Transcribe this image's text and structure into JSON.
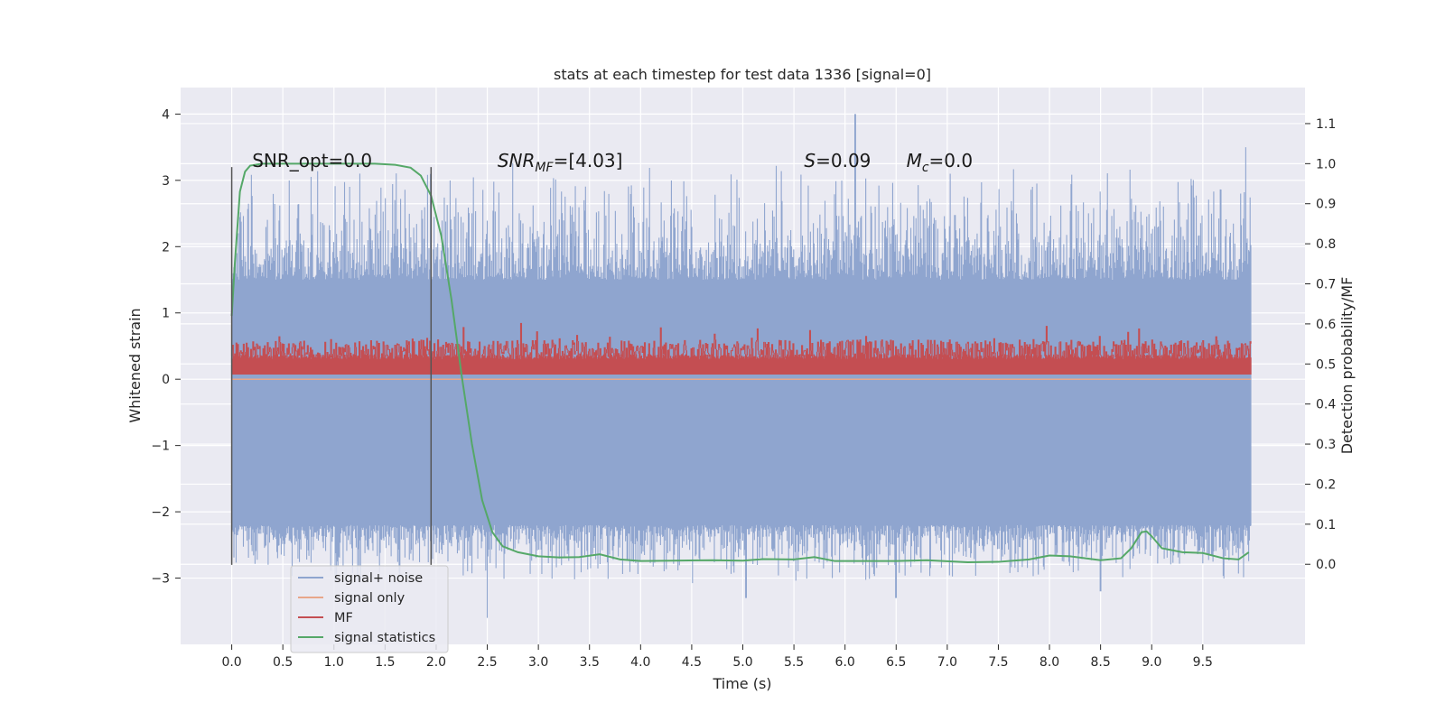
{
  "chart_data": {
    "type": "line",
    "title": "stats at each timestep for test data 1336 [signal=0]",
    "xlabel": "Time (s)",
    "ylabel_left": "Whitened strain",
    "ylabel_right": "Detection probability/MF",
    "xlim": [
      -0.5,
      10.5
    ],
    "ylim_left": [
      -4.0,
      4.4
    ],
    "ylim_right": [
      -0.2,
      1.19
    ],
    "x_ticks": [
      "0.0",
      "0.5",
      "1.0",
      "1.5",
      "2.0",
      "2.5",
      "3.0",
      "3.5",
      "4.0",
      "4.5",
      "5.0",
      "5.5",
      "6.0",
      "6.5",
      "7.0",
      "7.5",
      "8.0",
      "8.5",
      "9.0",
      "9.5"
    ],
    "y_ticks_left": [
      "−3",
      "−2",
      "−1",
      "0",
      "1",
      "2",
      "3",
      "4"
    ],
    "y_ticks_right": [
      "0.0",
      "0.1",
      "0.2",
      "0.3",
      "0.4",
      "0.5",
      "0.6",
      "0.7",
      "0.8",
      "0.9",
      "1.0",
      "1.1"
    ],
    "grid": true,
    "legend_position": "lower-left",
    "colors": {
      "signal_noise": "#8fa5cf",
      "signal_only": "#e8a68a",
      "mf": "#c44e52",
      "signal_statistics": "#55a868",
      "background": "#eaeaf2",
      "grid": "#ffffff",
      "vline": "#555555"
    },
    "series": [
      {
        "name": "signal+ noise",
        "axis": "left",
        "style": "noise band",
        "range": [
          -2.2,
          1.5
        ],
        "peaks": [
          [
            0.1,
            1.8
          ],
          [
            6.1,
            4.0
          ],
          [
            5.03,
            -3.3
          ],
          [
            2.5,
            -3.6
          ],
          [
            9.92,
            3.5
          ],
          [
            8.5,
            -3.2
          ],
          [
            6.5,
            -3.3
          ]
        ]
      },
      {
        "name": "signal only",
        "axis": "left",
        "style": "flat",
        "value": 0.0
      },
      {
        "name": "MF",
        "axis": "left",
        "style": "noise band",
        "range": [
          0.05,
          0.9
        ]
      },
      {
        "name": "signal statistics",
        "axis": "right",
        "x": [
          0.0,
          0.03,
          0.08,
          0.13,
          0.18,
          0.3,
          0.5,
          1.0,
          1.4,
          1.6,
          1.75,
          1.85,
          1.95,
          2.05,
          2.15,
          2.25,
          2.35,
          2.45,
          2.55,
          2.65,
          2.8,
          3.0,
          3.2,
          3.4,
          3.6,
          3.8,
          4.0,
          4.3,
          4.7,
          5.0,
          5.2,
          5.5,
          5.7,
          5.9,
          6.2,
          6.5,
          6.8,
          7.2,
          7.5,
          7.8,
          8.0,
          8.2,
          8.5,
          8.7,
          8.8,
          8.9,
          8.95,
          9.0,
          9.1,
          9.3,
          9.5,
          9.7,
          9.85,
          9.95
        ],
        "y": [
          0.62,
          0.75,
          0.93,
          0.98,
          0.995,
          1.0,
          1.0,
          1.0,
          1.0,
          0.997,
          0.99,
          0.97,
          0.92,
          0.82,
          0.66,
          0.47,
          0.3,
          0.16,
          0.08,
          0.045,
          0.03,
          0.02,
          0.017,
          0.018,
          0.025,
          0.012,
          0.008,
          0.009,
          0.01,
          0.009,
          0.013,
          0.012,
          0.018,
          0.008,
          0.008,
          0.008,
          0.01,
          0.005,
          0.006,
          0.012,
          0.022,
          0.02,
          0.01,
          0.015,
          0.04,
          0.08,
          0.082,
          0.07,
          0.04,
          0.03,
          0.028,
          0.015,
          0.012,
          0.03
        ]
      }
    ],
    "vlines": [
      0.0,
      1.95
    ],
    "annotations": [
      {
        "text": "SNR_opt=0.0",
        "x": 0.2,
        "y": 3.2
      },
      {
        "base": "SNR",
        "sub": "MF",
        "rest": "=[4.03]",
        "x": 2.6,
        "y": 3.2
      },
      {
        "base": "S",
        "rest": "=0.09",
        "x": 5.6,
        "y": 3.2
      },
      {
        "base": "M",
        "sub": "c",
        "rest": "=0.0",
        "x": 6.6,
        "y": 3.2
      }
    ]
  }
}
